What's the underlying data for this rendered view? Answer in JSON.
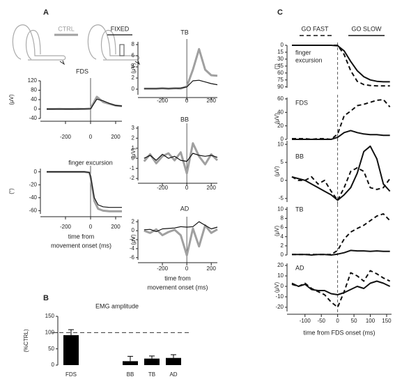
{
  "panel_labels": [
    "A",
    "B",
    "C"
  ],
  "chart_data": [
    {
      "type": "line",
      "title": "FDS",
      "ylabel": "(μV)",
      "x": [
        -350,
        -300,
        -250,
        -200,
        -150,
        -100,
        -50,
        0,
        50,
        100,
        150,
        200,
        250
      ],
      "xlim": [
        -400,
        250
      ],
      "ylim": [
        -40,
        120
      ],
      "xticks": [
        -200,
        0,
        200
      ],
      "yticks": [
        -40,
        0,
        40,
        80,
        120
      ],
      "vline": 0,
      "series": [
        {
          "name": "CTRL",
          "color": "#a0a0a0",
          "width": 3,
          "values": [
            0,
            0,
            1,
            0,
            0,
            1,
            0,
            2,
            52,
            30,
            22,
            15,
            12
          ]
        },
        {
          "name": "FIXED",
          "color": "#111111",
          "width": 1.2,
          "values": [
            0,
            0,
            0,
            0,
            0,
            0,
            1,
            1,
            42,
            35,
            24,
            15,
            13
          ]
        }
      ]
    },
    {
      "type": "line",
      "title": "finger excursion",
      "ylabel": "(°)",
      "xlabel": [
        "time from",
        "movement onset (ms)"
      ],
      "x": [
        -350,
        -300,
        -250,
        -200,
        -150,
        -100,
        -50,
        -10,
        0,
        30,
        60,
        100,
        150,
        200,
        250
      ],
      "xlim": [
        -400,
        250
      ],
      "ylim": [
        -65,
        5
      ],
      "xticks": [
        -200,
        0,
        200
      ],
      "yticks": [
        -60,
        -40,
        -20,
        0
      ],
      "vline": 0,
      "series": [
        {
          "name": "CTRL",
          "color": "#a0a0a0",
          "width": 3,
          "values": [
            0,
            0,
            0,
            0,
            0,
            0,
            0,
            -1,
            -8,
            -45,
            -57,
            -60,
            -61,
            -61,
            -61
          ]
        },
        {
          "name": "FIXED",
          "color": "#111111",
          "width": 1.2,
          "values": [
            0,
            0,
            0,
            0,
            0,
            0,
            0,
            -1,
            -7,
            -40,
            -51,
            -54,
            -55,
            -55,
            -55
          ]
        }
      ]
    },
    {
      "type": "line",
      "title": "TB",
      "ylabel": "(μV)",
      "x": [
        -350,
        -300,
        -250,
        -200,
        -150,
        -100,
        -50,
        0,
        50,
        100,
        150,
        200,
        250
      ],
      "xlim": [
        -400,
        250
      ],
      "ylim": [
        -1,
        8.5
      ],
      "xticks": [
        -200,
        0,
        200
      ],
      "yticks": [
        0,
        2,
        4,
        6,
        8
      ],
      "vline": 0,
      "series": [
        {
          "name": "CTRL",
          "color": "#a0a0a0",
          "width": 3,
          "values": [
            0.1,
            0.1,
            0.1,
            0.2,
            0.1,
            0.2,
            0.1,
            0.5,
            3.5,
            7.2,
            3.5,
            2.5,
            2.4
          ]
        },
        {
          "name": "FIXED",
          "color": "#111111",
          "width": 1.2,
          "values": [
            0.1,
            0.1,
            0.1,
            0.1,
            0.1,
            0.1,
            0.2,
            0.4,
            1.5,
            1.6,
            1.3,
            1.0,
            0.8
          ]
        }
      ]
    },
    {
      "type": "line",
      "title": "BB",
      "ylabel": "(μV)",
      "x": [
        -350,
        -300,
        -250,
        -200,
        -150,
        -100,
        -50,
        0,
        50,
        100,
        150,
        200,
        250
      ],
      "xlim": [
        -400,
        250
      ],
      "ylim": [
        -2.2,
        3.2
      ],
      "xticks": [
        -200,
        0,
        200
      ],
      "yticks": [
        -2,
        -1,
        0,
        1,
        2,
        3
      ],
      "vline": 0,
      "series": [
        {
          "name": "CTRL",
          "color": "#a0a0a0",
          "width": 3,
          "values": [
            -0.3,
            0.4,
            -0.5,
            0.2,
            0.5,
            -0.2,
            0.6,
            -1.5,
            1.5,
            0.2,
            -0.6,
            0.4,
            -0.2
          ]
        },
        {
          "name": "FIXED",
          "color": "#111111",
          "width": 1.2,
          "values": [
            0,
            0.3,
            -0.2,
            0.4,
            0,
            0.2,
            -0.2,
            -0.3,
            0.5,
            0.3,
            0.2,
            0.3,
            0.1
          ]
        }
      ]
    },
    {
      "type": "line",
      "title": "AD",
      "ylabel": "(μV)",
      "xlabel": [
        "time from",
        "movement onset (ms)"
      ],
      "x": [
        -350,
        -300,
        -250,
        -200,
        -150,
        -100,
        -50,
        0,
        50,
        100,
        150,
        200,
        250
      ],
      "xlim": [
        -400,
        250
      ],
      "ylim": [
        -6.5,
        2.5
      ],
      "xticks": [
        -200,
        0,
        200
      ],
      "yticks": [
        -6,
        -4,
        -2,
        0,
        2
      ],
      "vline": 0,
      "series": [
        {
          "name": "CTRL",
          "color": "#a0a0a0",
          "width": 3,
          "values": [
            0,
            -0.5,
            0.3,
            -1,
            -0.3,
            0.2,
            -1,
            -5.5,
            0.5,
            -3.5,
            1.2,
            -0.5,
            0.3
          ]
        },
        {
          "name": "FIXED",
          "color": "#111111",
          "width": 1.2,
          "values": [
            0.2,
            0.3,
            -0.2,
            0.4,
            0.5,
            0.6,
            0.9,
            0.8,
            0.9,
            2,
            1.2,
            0.4,
            0.8
          ]
        }
      ]
    },
    {
      "type": "bar",
      "title": "EMG amplitude",
      "ylabel": "(%CTRL)",
      "categories": [
        "FDS",
        "BB",
        "TB",
        "AD"
      ],
      "values": [
        92,
        12,
        20,
        22
      ],
      "errors": [
        17,
        15,
        8,
        10
      ],
      "color": "#000000",
      "ylim": [
        0,
        150
      ],
      "yticks": [
        0,
        50,
        100,
        150
      ],
      "reference": 100
    },
    {
      "type": "line",
      "title": [
        "finger",
        "excursion"
      ],
      "ylabel": "(°)",
      "y_inverted": true,
      "x": [
        -140,
        -120,
        -100,
        -80,
        -60,
        -40,
        -20,
        0,
        20,
        40,
        60,
        80,
        100,
        120,
        140,
        160
      ],
      "xlim": [
        -155,
        165
      ],
      "ylim": [
        0,
        92
      ],
      "yticks": [
        0,
        15,
        30,
        45,
        60,
        75,
        90
      ],
      "vline": 0,
      "vline_dashed": true,
      "series": [
        {
          "name": "GO FAST",
          "color": "#111111",
          "width": 2,
          "dashed": true,
          "values": [
            0,
            0,
            0,
            0,
            0,
            0,
            0,
            0,
            20,
            55,
            78,
            85,
            87,
            88,
            88,
            88
          ]
        },
        {
          "name": "GO SLOW",
          "color": "#111111",
          "width": 2,
          "dashed": false,
          "values": [
            0,
            0,
            0,
            0,
            0,
            0,
            0,
            1,
            12,
            35,
            55,
            68,
            75,
            78,
            79,
            79
          ]
        }
      ]
    },
    {
      "type": "line",
      "title": "FDS",
      "ylabel": "(μV)",
      "x": [
        -140,
        -120,
        -100,
        -80,
        -60,
        -40,
        -20,
        0,
        20,
        40,
        60,
        80,
        100,
        120,
        140,
        160
      ],
      "xlim": [
        -155,
        165
      ],
      "ylim": [
        0,
        62
      ],
      "yticks": [
        0,
        20,
        40,
        60
      ],
      "vline": 0,
      "vline_dashed": true,
      "series": [
        {
          "name": "GO FAST",
          "color": "#111111",
          "width": 2,
          "dashed": true,
          "values": [
            1,
            1,
            1,
            0,
            1,
            1,
            0,
            8,
            35,
            42,
            50,
            52,
            55,
            58,
            59,
            48
          ]
        },
        {
          "name": "GO SLOW",
          "color": "#111111",
          "width": 2,
          "dashed": false,
          "values": [
            0,
            0,
            0,
            0,
            0,
            0,
            0,
            3,
            10,
            13,
            10,
            8,
            7,
            7,
            6,
            6
          ]
        }
      ]
    },
    {
      "type": "line",
      "title": "BB",
      "ylabel": "(μV)",
      "x": [
        -140,
        -120,
        -100,
        -80,
        -60,
        -40,
        -20,
        0,
        20,
        40,
        60,
        80,
        100,
        120,
        140,
        160
      ],
      "xlim": [
        -155,
        165
      ],
      "ylim": [
        -6,
        11
      ],
      "yticks": [
        -5,
        0,
        5,
        10
      ],
      "vline": 0,
      "vline_dashed": true,
      "series": [
        {
          "name": "GO FAST",
          "color": "#111111",
          "width": 2,
          "dashed": true,
          "values": [
            1,
            0,
            0,
            1,
            -1,
            0,
            -3,
            -5.5,
            -2,
            2.5,
            3.5,
            2.5,
            -2,
            -2.5,
            -2,
            0.5
          ]
        },
        {
          "name": "GO SLOW",
          "color": "#111111",
          "width": 2,
          "dashed": false,
          "values": [
            1,
            0.5,
            0,
            -1,
            -2,
            -3,
            -4,
            -5.5,
            -4,
            -2,
            2,
            8,
            9.5,
            6,
            -1,
            -3
          ]
        }
      ]
    },
    {
      "type": "line",
      "title": "TB",
      "ylabel": "(μV)",
      "x": [
        -140,
        -120,
        -100,
        -80,
        -60,
        -40,
        -20,
        0,
        20,
        40,
        60,
        80,
        100,
        120,
        140,
        160
      ],
      "xlim": [
        -155,
        165
      ],
      "ylim": [
        0,
        10.5
      ],
      "yticks": [
        0,
        2,
        4,
        6,
        8,
        10
      ],
      "vline": 0,
      "vline_dashed": true,
      "series": [
        {
          "name": "GO FAST",
          "color": "#111111",
          "width": 2,
          "dashed": true,
          "values": [
            0.1,
            0.1,
            0.1,
            0.1,
            0.1,
            0.1,
            0.1,
            1,
            3.5,
            5,
            5.8,
            6.5,
            7.5,
            8.5,
            9,
            7.5
          ]
        },
        {
          "name": "GO SLOW",
          "color": "#111111",
          "width": 2,
          "dashed": false,
          "values": [
            0.1,
            0.1,
            0.1,
            0,
            0.1,
            0.1,
            0,
            0.2,
            0.5,
            1,
            0.9,
            0.9,
            0.8,
            0.9,
            0.8,
            0.8
          ]
        }
      ]
    },
    {
      "type": "line",
      "title": "AD",
      "ylabel": "(μV)",
      "xlabel": [
        "time from FDS onset (ms)"
      ],
      "x": [
        -140,
        -120,
        -100,
        -80,
        -60,
        -40,
        -20,
        0,
        20,
        40,
        60,
        80,
        100,
        120,
        140,
        160
      ],
      "xlim": [
        -155,
        165
      ],
      "ylim": [
        -24,
        22
      ],
      "xticks": [
        -100,
        -50,
        0,
        50,
        100,
        150
      ],
      "yticks": [
        -20,
        -10,
        0,
        10,
        20
      ],
      "vline": 0,
      "vline_dashed": true,
      "series": [
        {
          "name": "GO FAST",
          "color": "#111111",
          "width": 2,
          "dashed": true,
          "values": [
            2,
            0,
            3,
            -2,
            -5,
            -8,
            -15,
            -20,
            -5,
            13,
            10,
            5,
            15,
            12,
            8,
            5
          ]
        },
        {
          "name": "GO SLOW",
          "color": "#111111",
          "width": 2,
          "dashed": false,
          "values": [
            3,
            0,
            2,
            -3,
            -4,
            -4,
            -7,
            -8,
            -6,
            -3,
            0,
            -2,
            3,
            5,
            3,
            0
          ]
        }
      ]
    }
  ]
}
